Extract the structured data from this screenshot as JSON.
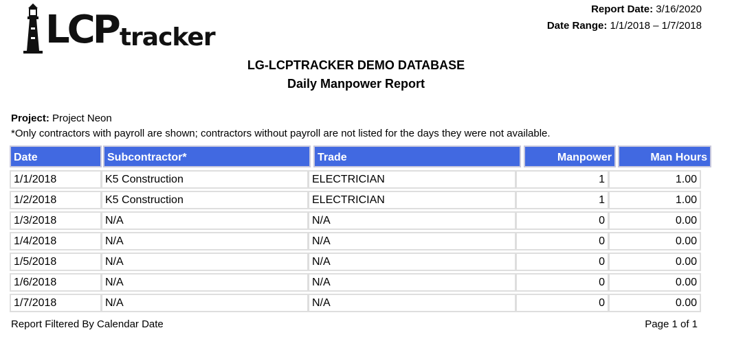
{
  "logo": {
    "lcp": "LCP",
    "tracker": "tracker"
  },
  "report_meta": {
    "report_date_label": "Report Date:",
    "report_date": "3/16/2020",
    "date_range_label": "Date Range:",
    "date_range": "1/1/2018 – 1/7/2018"
  },
  "title": {
    "line1": "LG-LCPTRACKER DEMO DATABASE",
    "line2": "Daily Manpower Report"
  },
  "project": {
    "label": "Project:",
    "name": "Project Neon"
  },
  "note": "*Only contractors with payroll are shown; contractors without payroll are not listed for the days they were not available.",
  "table": {
    "headers": [
      "Date",
      "Subcontractor*",
      "Trade",
      "Manpower",
      "Man Hours"
    ],
    "rows": [
      [
        "1/1/2018",
        "K5 Construction",
        "ELECTRICIAN",
        "1",
        "1.00"
      ],
      [
        "1/2/2018",
        "K5 Construction",
        "ELECTRICIAN",
        "1",
        "1.00"
      ],
      [
        "1/3/2018",
        "N/A",
        "N/A",
        "0",
        "0.00"
      ],
      [
        "1/4/2018",
        "N/A",
        "N/A",
        "0",
        "0.00"
      ],
      [
        "1/5/2018",
        "N/A",
        "N/A",
        "0",
        "0.00"
      ],
      [
        "1/6/2018",
        "N/A",
        "N/A",
        "0",
        "0.00"
      ],
      [
        "1/7/2018",
        "N/A",
        "N/A",
        "0",
        "0.00"
      ]
    ]
  },
  "footer": {
    "filter": "Report Filtered By Calendar Date",
    "page": "Page 1 of 1"
  },
  "colors": {
    "header_bg": "#4169E1",
    "header_text": "#ffffff",
    "cell_border": "#dedede"
  }
}
